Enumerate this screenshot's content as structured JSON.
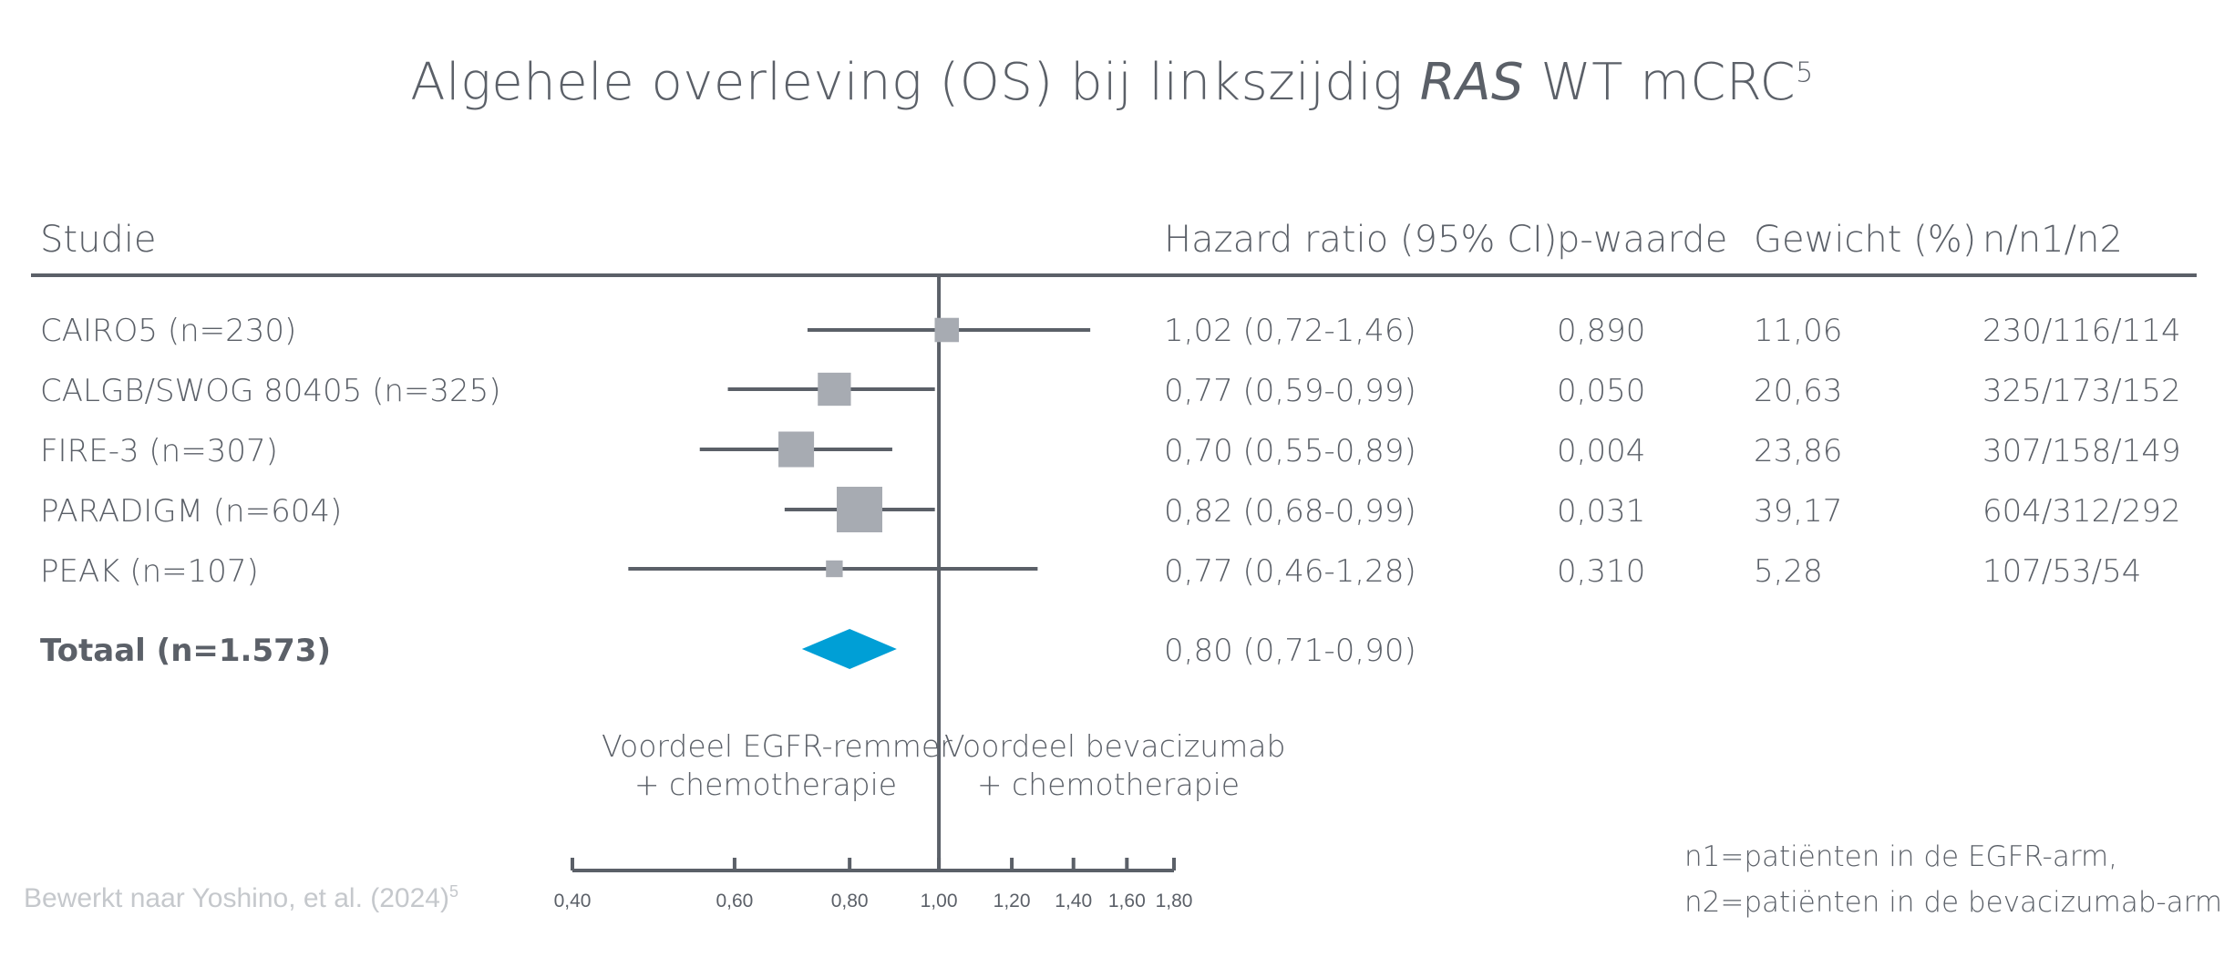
{
  "title": {
    "pre": "Algehele overleving (OS) bij linkszijdig ",
    "italic": "RAS",
    "post": " WT mCRC",
    "sup": "5"
  },
  "headers": {
    "study": "Studie",
    "hr": "Hazard ratio (95% CI)",
    "p": "p-waarde",
    "weight": "Gewicht (%)",
    "n": "n/n1/n2"
  },
  "rows": [
    {
      "study": "CAIRO5 (n=230)",
      "hr_text": "1,02 (0,72-1,46)",
      "p": "0,890",
      "weight": "11,06",
      "n": "230/116/114"
    },
    {
      "study": "CALGB/SWOG 80405 (n=325)",
      "hr_text": "0,77 (0,59-0,99)",
      "p": "0,050",
      "weight": "20,63",
      "n": "325/173/152"
    },
    {
      "study": "FIRE-3 (n=307)",
      "hr_text": "0,70 (0,55-0,89)",
      "p": "0,004",
      "weight": "23,86",
      "n": "307/158/149"
    },
    {
      "study": "PARADIGM (n=604)",
      "hr_text": "0,82 (0,68-0,99)",
      "p": "0,031",
      "weight": "39,17",
      "n": "604/312/292"
    },
    {
      "study": "PEAK (n=107)",
      "hr_text": "0,77 (0,46-1,28)",
      "p": "0,310",
      "weight": "5,28",
      "n": "107/53/54"
    }
  ],
  "total": {
    "study": "Totaal (n=1.573)",
    "hr_text": "0,80 (0,71-0,90)"
  },
  "favours": {
    "left_line1": "Voordeel EGFR-remmer",
    "left_line2": "+ chemotherapie",
    "right_line1": "Voordeel bevacizumab",
    "right_line2": "+ chemotherapie"
  },
  "footnote": {
    "line1": "n1=patiënten in de EGFR-arm,",
    "line2": "n2=patiënten in de bevacizumab-arm"
  },
  "source": {
    "text": "Bewerkt naar Yoshino, et al. (2024)",
    "sup": "5"
  },
  "colors": {
    "text": "#5b6068",
    "marker": "#a7abb2",
    "diamond": "#009fd6",
    "source": "#c5c8cc"
  },
  "chart_data": {
    "type": "forest",
    "scale": "log",
    "xlim": [
      0.4,
      1.8
    ],
    "reference_line": 1.0,
    "ticks": [
      0.4,
      0.6,
      0.8,
      1.0,
      1.2,
      1.4,
      1.6,
      1.8
    ],
    "tick_labels": [
      "0,40",
      "0,60",
      "0,80",
      "1,00",
      "1,20",
      "1,40",
      "1,60",
      "1,80"
    ],
    "studies": [
      {
        "name": "CAIRO5 (n=230)",
        "hr": 1.02,
        "lower": 0.72,
        "upper": 1.46,
        "weight": 11.06
      },
      {
        "name": "CALGB/SWOG 80405 (n=325)",
        "hr": 0.77,
        "lower": 0.59,
        "upper": 0.99,
        "weight": 20.63
      },
      {
        "name": "FIRE-3 (n=307)",
        "hr": 0.7,
        "lower": 0.55,
        "upper": 0.89,
        "weight": 23.86
      },
      {
        "name": "PARADIGM (n=604)",
        "hr": 0.82,
        "lower": 0.68,
        "upper": 0.99,
        "weight": 39.17
      },
      {
        "name": "PEAK (n=107)",
        "hr": 0.77,
        "lower": 0.46,
        "upper": 1.28,
        "weight": 5.28
      }
    ],
    "pooled": {
      "name": "Totaal (n=1.573)",
      "hr": 0.8,
      "lower": 0.71,
      "upper": 0.9
    }
  }
}
